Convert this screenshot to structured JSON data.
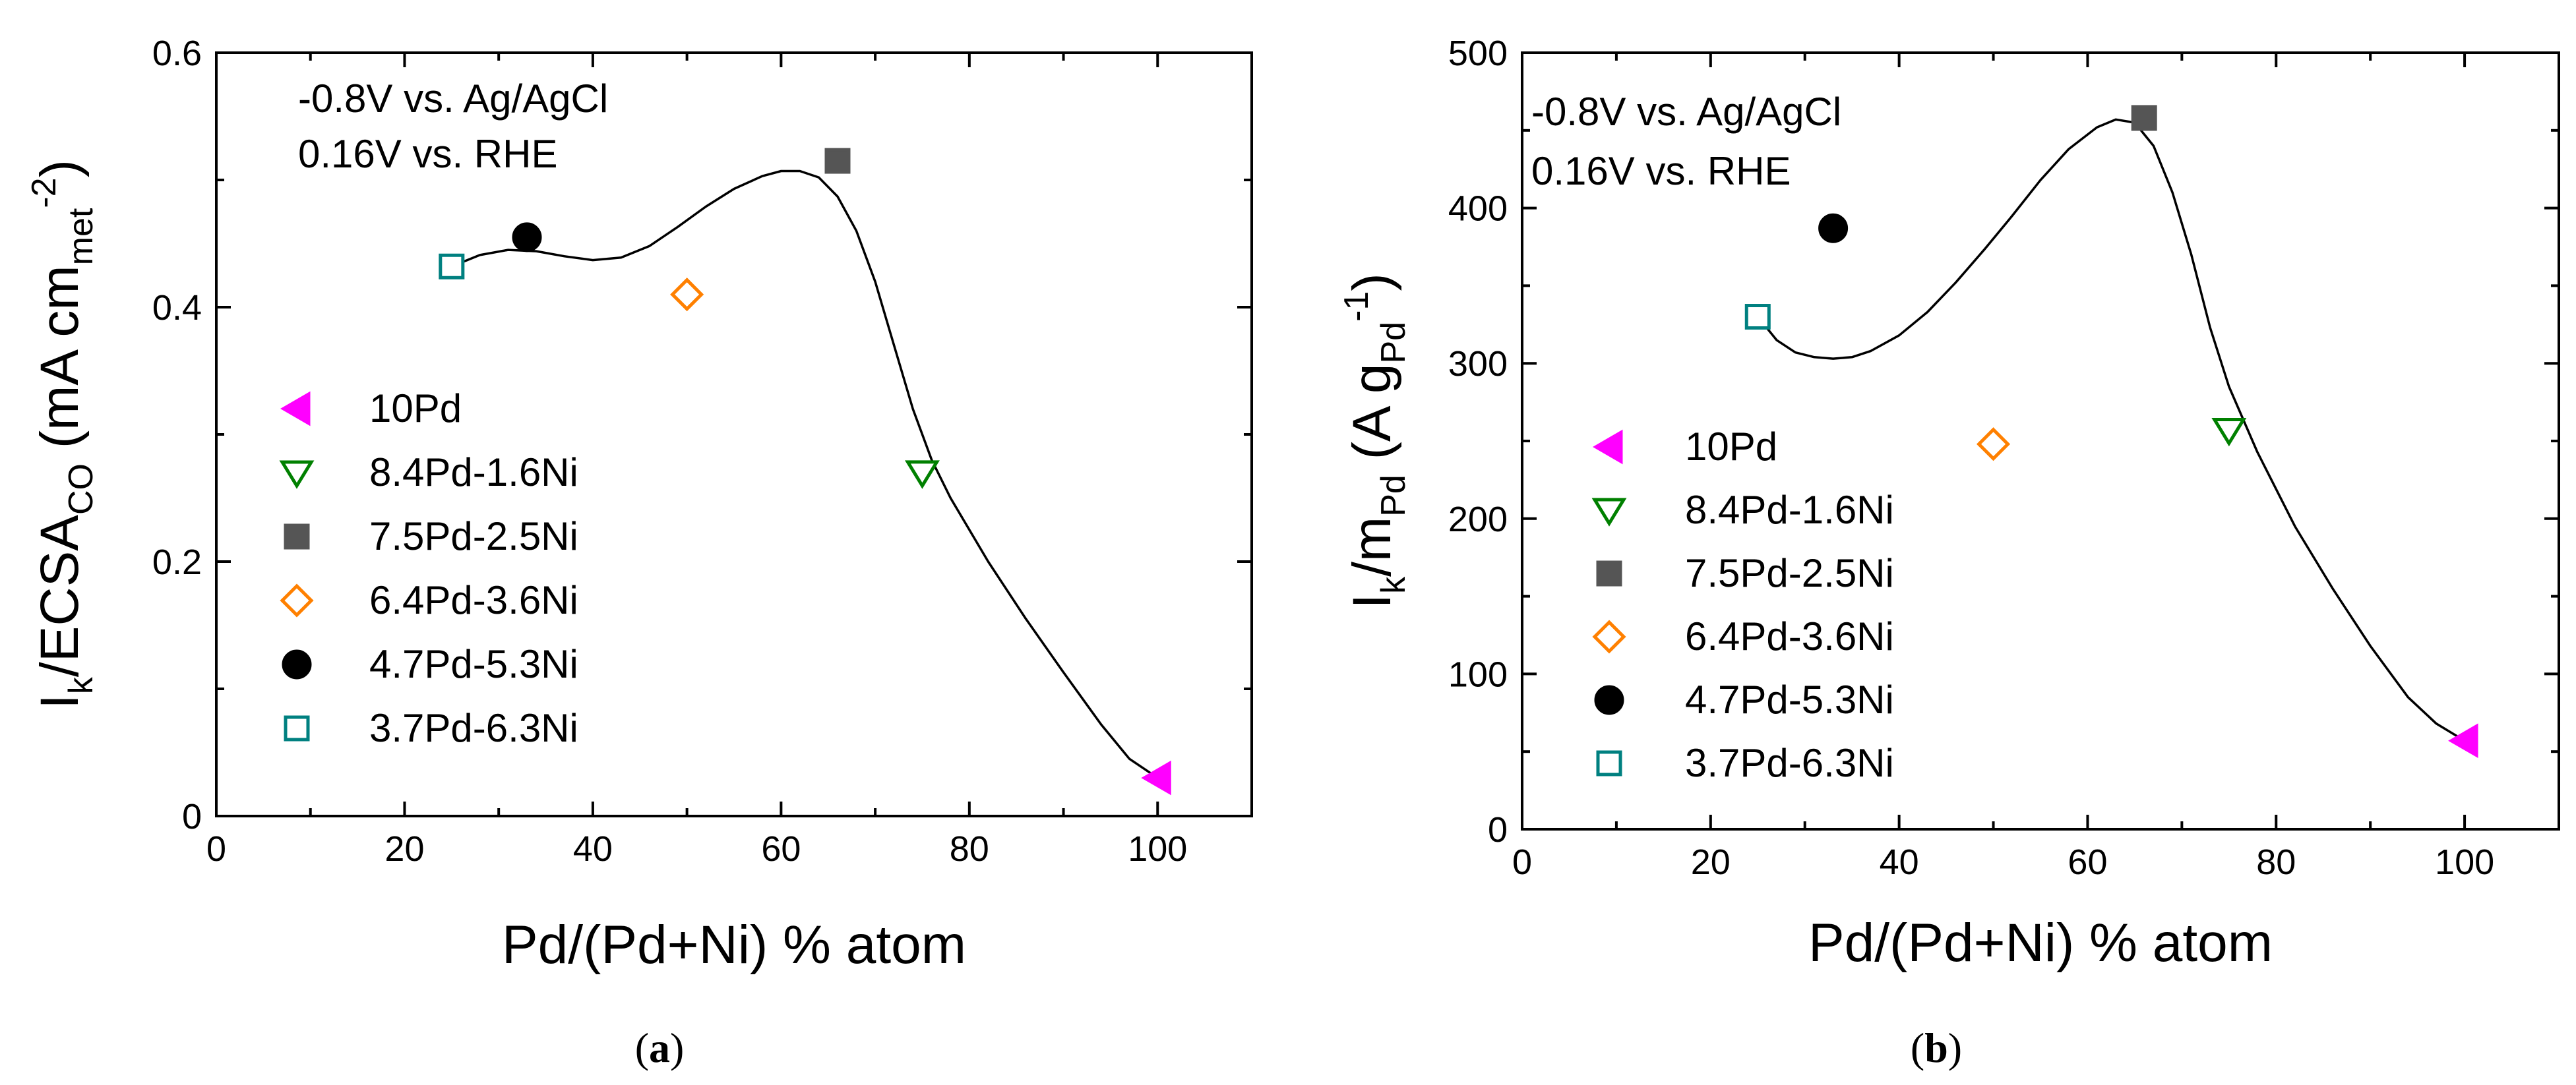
{
  "chart_data": [
    {
      "panel_label": "a",
      "type": "scatter",
      "xlabel": "Pd/(Pd+Ni) % atom",
      "ylabel": {
        "parts": [
          {
            "text": "I",
            "style": "normal"
          },
          {
            "text": "k",
            "style": "sub"
          },
          {
            "text": "/ECSA",
            "style": "normal"
          },
          {
            "text": "CO",
            "style": "sub"
          },
          {
            "text": " (mA cm",
            "style": "normal"
          },
          {
            "text": "met",
            "style": "sub"
          },
          {
            "text": "-2",
            "style": "sup"
          },
          {
            "text": ")",
            "style": "normal"
          }
        ]
      },
      "xlim": [
        0,
        110
      ],
      "ylim": [
        0,
        0.6
      ],
      "xticks": [
        0,
        20,
        40,
        60,
        80,
        100
      ],
      "yticks": [
        0,
        0.2,
        0.4,
        0.6
      ],
      "ytick_labels": [
        "0",
        "0.2",
        "0.4",
        "0.6"
      ],
      "annotations": [
        "-0.8V vs. Ag/AgCl",
        "0.16V vs. RHE"
      ],
      "legend_position": "center-left",
      "series": [
        {
          "name": "10Pd",
          "marker": "triangle-left",
          "filled": true,
          "color": "#ff00ff",
          "x": 100,
          "y": 0.03
        },
        {
          "name": "8.4Pd-1.6Ni",
          "marker": "triangle-down",
          "filled": false,
          "color": "#008000",
          "x": 75,
          "y": 0.27
        },
        {
          "name": "7.5Pd-2.5Ni",
          "marker": "square",
          "filled": true,
          "color": "#555555",
          "x": 66,
          "y": 0.515
        },
        {
          "name": "6.4Pd-3.6Ni",
          "marker": "diamond",
          "filled": false,
          "color": "#ff8000",
          "x": 50,
          "y": 0.41
        },
        {
          "name": "4.7Pd-5.3Ni",
          "marker": "circle",
          "filled": true,
          "color": "#000000",
          "x": 33,
          "y": 0.455
        },
        {
          "name": "3.7Pd-6.3Ni",
          "marker": "square",
          "filled": false,
          "color": "#008080",
          "x": 25,
          "y": 0.432
        }
      ],
      "fit_curve": {
        "x": [
          25,
          28,
          31,
          34,
          37,
          40,
          43,
          46,
          49,
          52,
          55,
          58,
          60,
          62,
          64,
          66,
          68,
          70,
          72,
          74,
          76,
          78,
          82,
          86,
          90,
          94,
          97,
          100
        ],
        "y": [
          0.432,
          0.441,
          0.445,
          0.444,
          0.44,
          0.437,
          0.439,
          0.448,
          0.463,
          0.479,
          0.493,
          0.503,
          0.507,
          0.507,
          0.502,
          0.487,
          0.46,
          0.42,
          0.37,
          0.32,
          0.28,
          0.25,
          0.2,
          0.155,
          0.113,
          0.072,
          0.045,
          0.03
        ]
      }
    },
    {
      "panel_label": "b",
      "type": "scatter",
      "xlabel": "Pd/(Pd+Ni) % atom",
      "ylabel": {
        "parts": [
          {
            "text": "I",
            "style": "normal"
          },
          {
            "text": "k",
            "style": "sub"
          },
          {
            "text": "/m",
            "style": "normal"
          },
          {
            "text": "Pd",
            "style": "sub"
          },
          {
            "text": " (A g",
            "style": "normal"
          },
          {
            "text": "Pd",
            "style": "sub"
          },
          {
            "text": "-1",
            "style": "sup"
          },
          {
            "text": ")",
            "style": "normal"
          }
        ]
      },
      "xlim": [
        0,
        110
      ],
      "ylim": [
        0,
        500
      ],
      "xticks": [
        0,
        20,
        40,
        60,
        80,
        100
      ],
      "yticks": [
        0,
        100,
        200,
        300,
        400,
        500
      ],
      "ytick_labels": [
        "0",
        "100",
        "200",
        "300",
        "400",
        "500"
      ],
      "annotations": [
        "-0.8V vs. Ag/AgCl",
        "0.16V vs. RHE"
      ],
      "legend_position": "lower-left",
      "series": [
        {
          "name": "10Pd",
          "marker": "triangle-left",
          "filled": true,
          "color": "#ff00ff",
          "x": 100,
          "y": 57
        },
        {
          "name": "8.4Pd-1.6Ni",
          "marker": "triangle-down",
          "filled": false,
          "color": "#008000",
          "x": 75,
          "y": 257
        },
        {
          "name": "7.5Pd-2.5Ni",
          "marker": "square",
          "filled": true,
          "color": "#555555",
          "x": 66,
          "y": 458
        },
        {
          "name": "6.4Pd-3.6Ni",
          "marker": "diamond",
          "filled": false,
          "color": "#ff8000",
          "x": 50,
          "y": 248
        },
        {
          "name": "4.7Pd-5.3Ni",
          "marker": "circle",
          "filled": true,
          "color": "#000000",
          "x": 33,
          "y": 387
        },
        {
          "name": "3.7Pd-6.3Ni",
          "marker": "square",
          "filled": false,
          "color": "#008080",
          "x": 25,
          "y": 330
        }
      ],
      "fit_curve": {
        "x": [
          25,
          27,
          29,
          31,
          33,
          35,
          37,
          40,
          43,
          46,
          49,
          52,
          55,
          58,
          61,
          63,
          65,
          67,
          69,
          71,
          73,
          75,
          78,
          82,
          86,
          90,
          94,
          97,
          100
        ],
        "y": [
          330,
          315,
          307,
          304,
          303,
          304,
          308,
          318,
          333,
          352,
          373,
          395,
          418,
          438,
          452,
          457,
          455,
          440,
          410,
          370,
          323,
          285,
          243,
          195,
          155,
          118,
          85,
          68,
          57
        ]
      }
    }
  ]
}
